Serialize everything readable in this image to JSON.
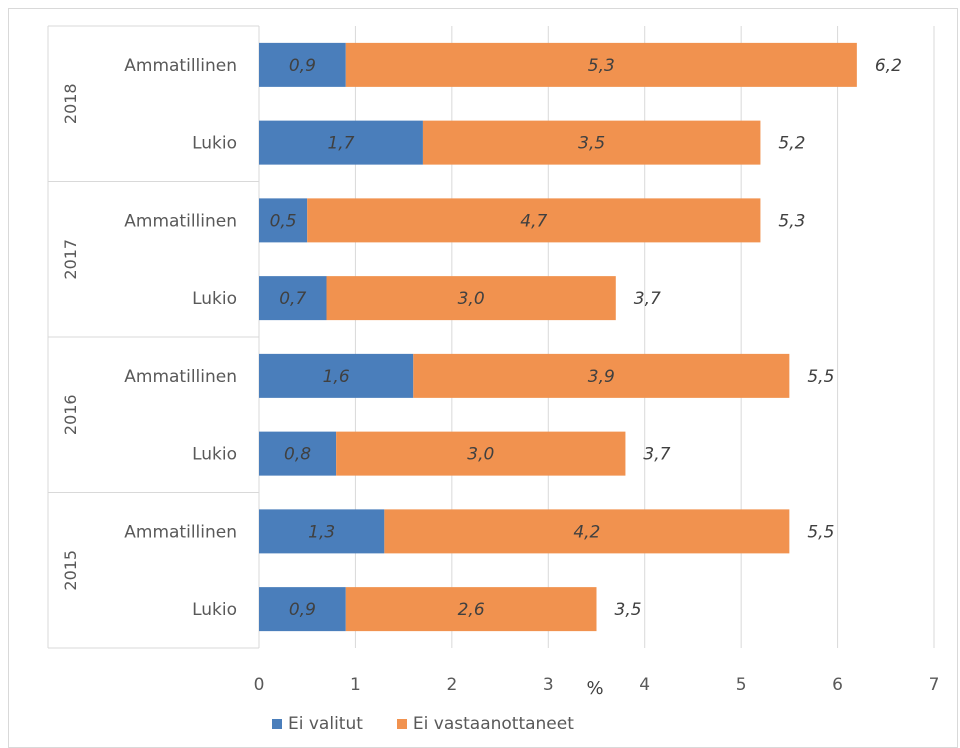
{
  "chart_data": {
    "type": "bar",
    "orientation": "horizontal",
    "stacked": true,
    "unit": "%",
    "xlim": [
      0,
      7
    ],
    "x_ticks": [
      "0",
      "1",
      "2",
      "3",
      "4",
      "5",
      "6",
      "7"
    ],
    "grid": "vertical",
    "legend_position": "bottom",
    "colors": {
      "Ei valitut": "#4a7ebb",
      "Ei vastaanottaneet": "#f1924f"
    },
    "series": [
      {
        "name": "Ei valitut"
      },
      {
        "name": "Ei vastaanottaneet"
      }
    ],
    "groups": [
      {
        "year": "2018",
        "rows": [
          {
            "category": "Ammatillinen",
            "ei_valitut": 0.9,
            "ei_valitut_label": "0,9",
            "ei_vastaanottaneet": 5.3,
            "ei_vastaanottaneet_label": "5,3",
            "total_label": "6,2"
          },
          {
            "category": "Lukio",
            "ei_valitut": 1.7,
            "ei_valitut_label": "1,7",
            "ei_vastaanottaneet": 3.5,
            "ei_vastaanottaneet_label": "3,5",
            "total_label": "5,2"
          }
        ]
      },
      {
        "year": "2017",
        "rows": [
          {
            "category": "Ammatillinen",
            "ei_valitut": 0.5,
            "ei_valitut_label": "0,5",
            "ei_vastaanottaneet": 4.7,
            "ei_vastaanottaneet_label": "4,7",
            "total_label": "5,3"
          },
          {
            "category": "Lukio",
            "ei_valitut": 0.7,
            "ei_valitut_label": "0,7",
            "ei_vastaanottaneet": 3.0,
            "ei_vastaanottaneet_label": "3,0",
            "total_label": "3,7"
          }
        ]
      },
      {
        "year": "2016",
        "rows": [
          {
            "category": "Ammatillinen",
            "ei_valitut": 1.6,
            "ei_valitut_label": "1,6",
            "ei_vastaanottaneet": 3.9,
            "ei_vastaanottaneet_label": "3,9",
            "total_label": "5,5"
          },
          {
            "category": "Lukio",
            "ei_valitut": 0.8,
            "ei_valitut_label": "0,8",
            "ei_vastaanottaneet": 3.0,
            "ei_vastaanottaneet_label": "3,0",
            "total_label": "3,7"
          }
        ]
      },
      {
        "year": "2015",
        "rows": [
          {
            "category": "Ammatillinen",
            "ei_valitut": 1.3,
            "ei_valitut_label": "1,3",
            "ei_vastaanottaneet": 4.2,
            "ei_vastaanottaneet_label": "4,2",
            "total_label": "5,5"
          },
          {
            "category": "Lukio",
            "ei_valitut": 0.9,
            "ei_valitut_label": "0,9",
            "ei_vastaanottaneet": 2.6,
            "ei_vastaanottaneet_label": "2,6",
            "total_label": "3,5"
          }
        ]
      }
    ]
  }
}
